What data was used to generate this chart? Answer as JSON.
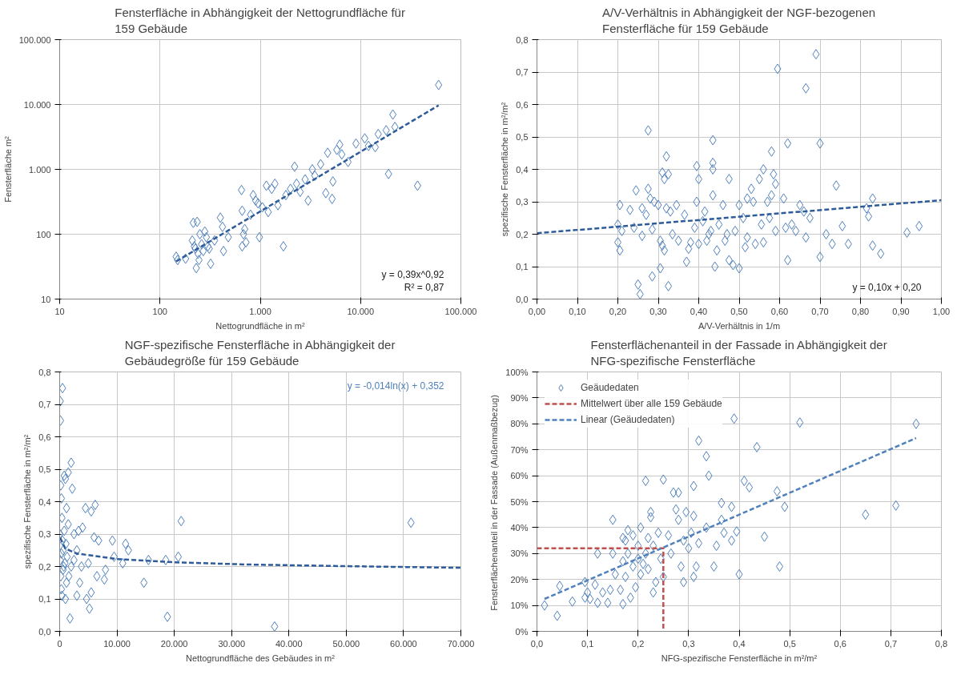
{
  "chart_data": [
    {
      "type": "scatter",
      "title": "Fensterfläche in Abhängigkeit der Nettogrundfläche für 159 Gebäude",
      "xlabel": "Nettogrundfläche in m²",
      "ylabel": "Fensterfläche m²",
      "log": "xy",
      "grid": true,
      "xlim": [
        10,
        100000
      ],
      "ylim": [
        10,
        100000
      ],
      "xticks": [
        10,
        100,
        {
          "value": 1000,
          "label": "1.000"
        },
        {
          "value": 10000,
          "label": "10.000"
        },
        {
          "value": 100000,
          "label": "100.000"
        }
      ],
      "yticks": [
        10,
        100,
        {
          "value": 1000,
          "label": "1.000"
        },
        {
          "value": 10000,
          "label": "10.000"
        },
        {
          "value": 100000,
          "label": "100.000"
        }
      ],
      "annotations": [
        "y = 0,39x^0,92",
        "R² = 0,87"
      ],
      "series": [
        {
          "color": "#4f81bd",
          "marker": "diamond",
          "x": [
            145,
            150,
            180,
            210,
            215,
            220,
            225,
            230,
            235,
            240,
            245,
            250,
            260,
            270,
            280,
            290,
            300,
            310,
            320,
            350,
            400,
            420,
            430,
            480,
            650,
            660,
            660,
            680,
            700,
            720,
            800,
            850,
            900,
            950,
            980,
            1050,
            1150,
            1200,
            1300,
            1400,
            1500,
            1700,
            1800,
            2000,
            2200,
            2300,
            2500,
            2800,
            3000,
            3300,
            3500,
            4000,
            4500,
            4700,
            5200,
            5300,
            5800,
            6200,
            6500,
            7500,
            9000,
            11000,
            12000,
            14000,
            15000,
            18000,
            19000,
            21000,
            22000,
            37000,
            60000
          ],
          "values": [
            45,
            40,
            42,
            80,
            150,
            65,
            60,
            30,
            155,
            50,
            40,
            100,
            70,
            55,
            110,
            90,
            65,
            60,
            35,
            80,
            180,
            130,
            55,
            90,
            480,
            230,
            65,
            100,
            120,
            75,
            200,
            400,
            330,
            300,
            90,
            260,
            560,
            220,
            500,
            600,
            280,
            65,
            400,
            500,
            1100,
            600,
            450,
            700,
            330,
            1000,
            800,
            1200,
            430,
            1800,
            350,
            650,
            2000,
            2400,
            1700,
            1300,
            2500,
            3000,
            2300,
            2200,
            3500,
            4000,
            850,
            7000,
            4500,
            560,
            20000
          ]
        },
        {
          "type": "line",
          "line_style": "dashed",
          "color": "#2e5c9a",
          "x": [
            145,
            60000
          ],
          "values": [
            38,
            9700
          ]
        }
      ]
    },
    {
      "type": "scatter",
      "title": "A/V-Verhältnis in Abhängigkeit der NGF-bezogenen Fensterfläche für 159 Gebäude",
      "xlabel": "A/V-Verhältnis in 1/m",
      "ylabel": "spezifische Fensterfläche in m²/m²",
      "grid": true,
      "xlim": [
        0,
        1
      ],
      "ylim": [
        0,
        0.8
      ],
      "xticks": [
        {
          "value": 0,
          "label": "0,00"
        },
        {
          "value": 0.1,
          "label": "0,10"
        },
        {
          "value": 0.2,
          "label": "0,20"
        },
        {
          "value": 0.3,
          "label": "0,30"
        },
        {
          "value": 0.4,
          "label": "0,40"
        },
        {
          "value": 0.5,
          "label": "0,50"
        },
        {
          "value": 0.6,
          "label": "0,60"
        },
        {
          "value": 0.7,
          "label": "0,70"
        },
        {
          "value": 0.8,
          "label": "0,80"
        },
        {
          "value": 0.9,
          "label": "0,90"
        },
        {
          "value": 1,
          "label": "1,00"
        }
      ],
      "yticks": [
        {
          "value": 0,
          "label": "0,0"
        },
        {
          "value": 0.1,
          "label": "0,1"
        },
        {
          "value": 0.2,
          "label": "0,2"
        },
        {
          "value": 0.3,
          "label": "0,3"
        },
        {
          "value": 0.4,
          "label": "0,4"
        },
        {
          "value": 0.5,
          "label": "0,5"
        },
        {
          "value": 0.6,
          "label": "0,6"
        },
        {
          "value": 0.7,
          "label": "0,7"
        },
        {
          "value": 0.8,
          "label": "0,8"
        }
      ],
      "annotations": [
        "y = 0,10x + 0,20"
      ],
      "series": [
        {
          "color": "#4f81bd",
          "marker": "diamond",
          "x": [
            0.2,
            0.2,
            0.205,
            0.205,
            0.21,
            0.23,
            0.24,
            0.245,
            0.25,
            0.255,
            0.26,
            0.26,
            0.27,
            0.275,
            0.275,
            0.28,
            0.285,
            0.285,
            0.29,
            0.3,
            0.305,
            0.305,
            0.31,
            0.31,
            0.315,
            0.315,
            0.32,
            0.32,
            0.325,
            0.325,
            0.33,
            0.335,
            0.345,
            0.35,
            0.365,
            0.37,
            0.375,
            0.38,
            0.39,
            0.395,
            0.395,
            0.4,
            0.4,
            0.41,
            0.415,
            0.42,
            0.425,
            0.43,
            0.435,
            0.435,
            0.435,
            0.435,
            0.44,
            0.445,
            0.45,
            0.46,
            0.465,
            0.47,
            0.475,
            0.475,
            0.485,
            0.49,
            0.5,
            0.5,
            0.51,
            0.515,
            0.52,
            0.52,
            0.53,
            0.535,
            0.54,
            0.55,
            0.555,
            0.56,
            0.56,
            0.57,
            0.575,
            0.58,
            0.58,
            0.585,
            0.59,
            0.59,
            0.595,
            0.61,
            0.615,
            0.62,
            0.62,
            0.63,
            0.64,
            0.65,
            0.66,
            0.665,
            0.665,
            0.675,
            0.69,
            0.7,
            0.7,
            0.715,
            0.73,
            0.74,
            0.755,
            0.77,
            0.815,
            0.82,
            0.83,
            0.83,
            0.85,
            0.915,
            0.945
          ],
          "values": [
            0.23,
            0.175,
            0.15,
            0.29,
            0.21,
            0.275,
            0.22,
            0.335,
            0.045,
            0.015,
            0.28,
            0.195,
            0.26,
            0.34,
            0.52,
            0.31,
            0.07,
            0.215,
            0.3,
            0.29,
            0.18,
            0.095,
            0.39,
            0.165,
            0.15,
            0.37,
            0.44,
            0.28,
            0.04,
            0.385,
            0.27,
            0.2,
            0.29,
            0.18,
            0.26,
            0.115,
            0.155,
            0.175,
            0.22,
            0.3,
            0.41,
            0.37,
            0.17,
            0.24,
            0.27,
            0.18,
            0.2,
            0.21,
            0.42,
            0.49,
            0.4,
            0.32,
            0.1,
            0.15,
            0.23,
            0.29,
            0.18,
            0.2,
            0.37,
            0.12,
            0.105,
            0.21,
            0.095,
            0.29,
            0.25,
            0.16,
            0.31,
            0.19,
            0.34,
            0.3,
            0.17,
            0.37,
            0.23,
            0.4,
            0.175,
            0.3,
            0.25,
            0.455,
            0.32,
            0.385,
            0.21,
            0.355,
            0.71,
            0.31,
            0.22,
            0.48,
            0.12,
            0.23,
            0.21,
            0.29,
            0.27,
            0.65,
            0.19,
            0.25,
            0.755,
            0.48,
            0.13,
            0.2,
            0.17,
            0.35,
            0.225,
            0.17,
            0.28,
            0.255,
            0.31,
            0.165,
            0.14,
            0.205,
            0.225
          ]
        },
        {
          "type": "line",
          "line_style": "dashed",
          "color": "#2e5c9a",
          "x": [
            0,
            1
          ],
          "values": [
            0.203,
            0.305
          ]
        }
      ]
    },
    {
      "type": "scatter",
      "title": "NGF-spezifische Fensterfläche in Abhängigkeit der Gebäudegröße für 159 Gebäude",
      "xlabel": "Nettogrundfläche des Gebäudes in m²",
      "ylabel": "spezifische Fensterfläche in m²/m²",
      "grid": true,
      "xlim": [
        0,
        70000
      ],
      "ylim": [
        0,
        0.8
      ],
      "xticks": [
        0,
        {
          "value": 10000,
          "label": "10.000"
        },
        {
          "value": 20000,
          "label": "20.000"
        },
        {
          "value": 30000,
          "label": "30.000"
        },
        {
          "value": 40000,
          "label": "40.000"
        },
        {
          "value": 50000,
          "label": "50.000"
        },
        {
          "value": 60000,
          "label": "60.000"
        },
        {
          "value": 70000,
          "label": "70.000"
        }
      ],
      "yticks": [
        {
          "value": 0,
          "label": "0,0"
        },
        {
          "value": 0.1,
          "label": "0,1"
        },
        {
          "value": 0.2,
          "label": "0,2"
        },
        {
          "value": 0.3,
          "label": "0,3"
        },
        {
          "value": 0.4,
          "label": "0,4"
        },
        {
          "value": 0.5,
          "label": "0,5"
        },
        {
          "value": 0.6,
          "label": "0,6"
        },
        {
          "value": 0.7,
          "label": "0,7"
        },
        {
          "value": 0.8,
          "label": "0,8"
        }
      ],
      "annotations": [
        "y = -0,014ln(x) + 0,352"
      ],
      "series": [
        {
          "color": "#4f81bd",
          "marker": "diamond",
          "x": [
            100,
            150,
            500,
            0,
            200,
            300,
            400,
            500,
            600,
            700,
            100,
            200,
            300,
            400,
            800,
            1000,
            1200,
            1000,
            1100,
            1500,
            1500,
            1800,
            2000,
            2200,
            2000,
            2500,
            3000,
            3300,
            3500,
            4000,
            4500,
            4700,
            5000,
            5200,
            5500,
            5500,
            6000,
            6200,
            6500,
            6800,
            7800,
            8000,
            9200,
            9500,
            11000,
            11500,
            12000,
            14700,
            15500,
            18500,
            18800,
            20700,
            21200,
            37500,
            61300,
            300,
            600,
            900,
            1300,
            1600,
            2500,
            3000,
            3800,
            800,
            1200
          ],
          "values": [
            0.71,
            0.65,
            0.75,
            0.3,
            0.45,
            0.41,
            0.35,
            0.28,
            0.25,
            0.2,
            0.22,
            0.17,
            0.13,
            0.11,
            0.48,
            0.47,
            0.38,
            0.1,
            0.27,
            0.49,
            0.33,
            0.04,
            0.52,
            0.44,
            0.2,
            0.3,
            0.11,
            0.31,
            0.15,
            0.32,
            0.38,
            0.1,
            0.21,
            0.07,
            0.12,
            0.37,
            0.29,
            0.39,
            0.17,
            0.28,
            0.16,
            0.19,
            0.28,
            0.23,
            0.21,
            0.27,
            0.25,
            0.15,
            0.22,
            0.22,
            0.045,
            0.23,
            0.34,
            0.015,
            0.335,
            0.24,
            0.19,
            0.21,
            0.23,
            0.17,
            0.22,
            0.25,
            0.2,
            0.31,
            0.15
          ]
        },
        {
          "type": "line",
          "line_style": "dashed",
          "color": "#2e5c9a",
          "x": [
            100,
            1000,
            3000,
            10000,
            20000,
            33000,
            50000,
            70000
          ],
          "values": [
            0.288,
            0.255,
            0.24,
            0.223,
            0.213,
            0.206,
            0.201,
            0.196
          ]
        }
      ]
    },
    {
      "type": "scatter",
      "title": "Fensterflächenanteil in der Fassade in Abhängigkeit der NFG-spezifische Fensterfläche",
      "xlabel": "NFG-spezifische Fensterfläche in m²/m²",
      "ylabel": "Fensterflächenanteil in der Fassade  (Außenmaßbezug)",
      "grid": true,
      "legend": "top left",
      "xlim": [
        0,
        0.8
      ],
      "ylim": [
        0,
        100
      ],
      "xticks": [
        {
          "value": 0,
          "label": "0,0"
        },
        {
          "value": 0.1,
          "label": "0,1"
        },
        {
          "value": 0.2,
          "label": "0,2"
        },
        {
          "value": 0.3,
          "label": "0,3"
        },
        {
          "value": 0.4,
          "label": "0,4"
        },
        {
          "value": 0.5,
          "label": "0,5"
        },
        {
          "value": 0.6,
          "label": "0,6"
        },
        {
          "value": 0.7,
          "label": "0,7"
        },
        {
          "value": 0.8,
          "label": "0,8"
        }
      ],
      "yticks": [
        {
          "value": 0,
          "label": "0%"
        },
        {
          "value": 10,
          "label": "10%"
        },
        {
          "value": 20,
          "label": "20%"
        },
        {
          "value": 30,
          "label": "30%"
        },
        {
          "value": 40,
          "label": "40%"
        },
        {
          "value": 50,
          "label": "50%"
        },
        {
          "value": 60,
          "label": "60%"
        },
        {
          "value": 70,
          "label": "70%"
        },
        {
          "value": 80,
          "label": "80%"
        },
        {
          "value": 90,
          "label": "90%"
        },
        {
          "value": 100,
          "label": "100%"
        }
      ],
      "series": [
        {
          "name": "Geäudedaten",
          "color": "#4f81bd",
          "marker": "diamond",
          "x": [
            0.015,
            0.04,
            0.045,
            0.07,
            0.095,
            0.095,
            0.1,
            0.105,
            0.115,
            0.12,
            0.12,
            0.13,
            0.14,
            0.145,
            0.15,
            0.15,
            0.155,
            0.165,
            0.17,
            0.17,
            0.17,
            0.175,
            0.175,
            0.18,
            0.18,
            0.185,
            0.19,
            0.19,
            0.195,
            0.2,
            0.2,
            0.205,
            0.205,
            0.21,
            0.215,
            0.215,
            0.22,
            0.22,
            0.225,
            0.225,
            0.23,
            0.23,
            0.235,
            0.24,
            0.245,
            0.25,
            0.25,
            0.26,
            0.265,
            0.27,
            0.275,
            0.28,
            0.28,
            0.285,
            0.29,
            0.29,
            0.295,
            0.3,
            0.305,
            0.31,
            0.31,
            0.31,
            0.315,
            0.32,
            0.32,
            0.335,
            0.335,
            0.34,
            0.35,
            0.355,
            0.365,
            0.365,
            0.37,
            0.385,
            0.385,
            0.39,
            0.395,
            0.4,
            0.41,
            0.42,
            0.435,
            0.45,
            0.475,
            0.48,
            0.49,
            0.52,
            0.65,
            0.71,
            0.75
          ],
          "values": [
            10,
            6,
            17.5,
            11.5,
            19,
            13,
            15,
            12.5,
            18,
            11,
            30,
            15,
            11,
            16,
            43,
            30,
            22,
            16,
            36,
            27,
            10.5,
            35,
            21,
            39,
            30,
            13,
            37,
            25,
            17,
            28,
            33,
            40,
            22,
            26,
            58,
            30,
            36,
            24,
            46,
            44,
            15,
            33,
            19,
            38,
            28,
            58.5,
            21,
            37,
            30,
            53.5,
            47,
            53.5,
            43,
            25,
            19,
            35,
            46,
            32,
            38,
            56,
            44.5,
            21,
            25,
            73.5,
            34,
            67.5,
            40,
            60,
            25,
            33,
            49.5,
            43,
            38,
            48,
            35,
            82,
            38.5,
            22,
            58,
            55.5,
            71,
            36.5,
            54,
            25,
            48,
            80.5,
            45,
            48.5,
            80
          ]
        },
        {
          "type": "line",
          "name": "Mittelwert über alle 159 Gebäude",
          "line_style": "dashed",
          "color": "#c0504d",
          "x": [
            0,
            0.25,
            0.25
          ],
          "values": [
            32,
            32,
            0
          ]
        },
        {
          "type": "line",
          "name": "Linear (Geäudedaten)",
          "line_style": "dashed",
          "color": "#4f81bd",
          "x": [
            0.015,
            0.75
          ],
          "values": [
            12.5,
            74.5
          ]
        }
      ]
    }
  ]
}
